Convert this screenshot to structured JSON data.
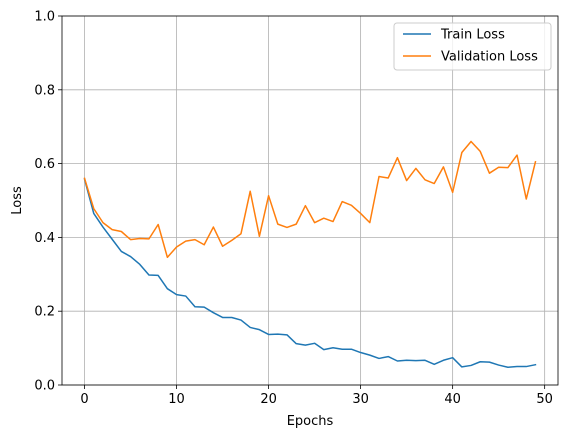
{
  "chart_data": {
    "type": "line",
    "xlabel": "Epochs",
    "ylabel": "Loss",
    "xlim": [
      -2.45,
      51.45
    ],
    "ylim": [
      0,
      1
    ],
    "xticks": [
      0,
      10,
      20,
      30,
      40,
      50
    ],
    "yticks": [
      0.0,
      0.2,
      0.4,
      0.6,
      0.8,
      1.0
    ],
    "xtick_labels": [
      "0",
      "10",
      "20",
      "30",
      "40",
      "50"
    ],
    "ytick_labels": [
      "0.0",
      "0.2",
      "0.4",
      "0.6",
      "0.8",
      "1.0"
    ],
    "grid": true,
    "legend_position": "top-right",
    "series": [
      {
        "name": "Train Loss",
        "color": "#1f77b4",
        "x": [
          0,
          1,
          2,
          3,
          4,
          5,
          6,
          7,
          8,
          9,
          10,
          11,
          12,
          13,
          14,
          15,
          16,
          17,
          18,
          19,
          20,
          21,
          22,
          23,
          24,
          25,
          26,
          27,
          28,
          29,
          30,
          31,
          32,
          33,
          34,
          35,
          36,
          37,
          38,
          39,
          40,
          41,
          42,
          43,
          44,
          45,
          46,
          47,
          48,
          49
        ],
        "values": [
          0.558,
          0.465,
          0.428,
          0.395,
          0.362,
          0.348,
          0.327,
          0.298,
          0.297,
          0.261,
          0.245,
          0.241,
          0.212,
          0.211,
          0.196,
          0.183,
          0.183,
          0.176,
          0.156,
          0.15,
          0.137,
          0.138,
          0.136,
          0.112,
          0.108,
          0.113,
          0.096,
          0.101,
          0.097,
          0.097,
          0.088,
          0.081,
          0.072,
          0.077,
          0.065,
          0.067,
          0.066,
          0.067,
          0.056,
          0.067,
          0.074,
          0.049,
          0.053,
          0.063,
          0.062,
          0.054,
          0.048,
          0.05,
          0.05,
          0.055
        ]
      },
      {
        "name": "Validation Loss",
        "color": "#ff7f0e",
        "x": [
          0,
          1,
          2,
          3,
          4,
          5,
          6,
          7,
          8,
          9,
          10,
          11,
          12,
          13,
          14,
          15,
          16,
          17,
          18,
          19,
          20,
          21,
          22,
          23,
          24,
          25,
          26,
          27,
          28,
          29,
          30,
          31,
          32,
          33,
          34,
          35,
          36,
          37,
          38,
          39,
          40,
          41,
          42,
          43,
          44,
          45,
          46,
          47,
          48,
          49
        ],
        "values": [
          0.56,
          0.478,
          0.44,
          0.421,
          0.416,
          0.394,
          0.397,
          0.396,
          0.435,
          0.346,
          0.374,
          0.39,
          0.394,
          0.38,
          0.428,
          0.376,
          0.392,
          0.41,
          0.525,
          0.403,
          0.513,
          0.436,
          0.427,
          0.436,
          0.486,
          0.44,
          0.452,
          0.443,
          0.497,
          0.487,
          0.465,
          0.44,
          0.565,
          0.561,
          0.616,
          0.554,
          0.587,
          0.556,
          0.546,
          0.591,
          0.522,
          0.63,
          0.66,
          0.633,
          0.574,
          0.59,
          0.589,
          0.623,
          0.504,
          0.605
        ]
      }
    ]
  }
}
